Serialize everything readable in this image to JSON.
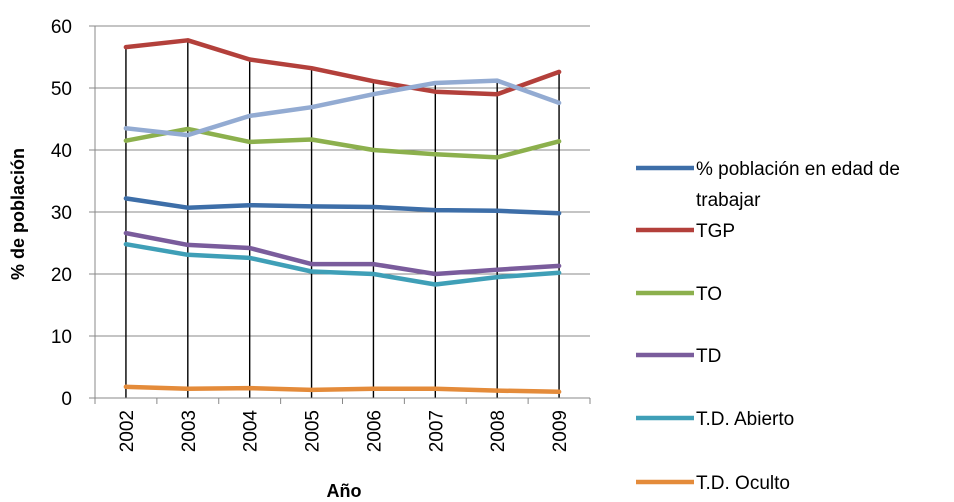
{
  "chart_data": {
    "type": "line",
    "title": "",
    "xlabel": "Año",
    "ylabel": "% de población",
    "ylim": [
      0,
      60
    ],
    "yticks": [
      0,
      10,
      20,
      30,
      40,
      50,
      60
    ],
    "categories": [
      "2002",
      "2003",
      "2004",
      "2005",
      "2006",
      "2007",
      "2008",
      "2009"
    ],
    "grid": "horizontal major gridlines; vertical drop lines at each year",
    "legend_position": "right",
    "series": [
      {
        "name": "% población en edad de trabajar",
        "color": "#3D6EA8",
        "values": [
          32.2,
          30.7,
          31.1,
          30.9,
          30.8,
          30.3,
          30.2,
          29.8
        ]
      },
      {
        "name": "TGP",
        "color": "#B3403B",
        "values": [
          56.6,
          57.7,
          54.6,
          53.2,
          51.1,
          49.4,
          49.0,
          52.6
        ]
      },
      {
        "name": "TO",
        "color": "#8CB04D",
        "values": [
          41.5,
          43.4,
          41.3,
          41.7,
          40.0,
          39.3,
          38.8,
          41.4
        ]
      },
      {
        "name": "TD",
        "color": "#7A5C9C",
        "values": [
          26.6,
          24.7,
          24.2,
          21.6,
          21.6,
          20.0,
          20.7,
          21.3
        ]
      },
      {
        "name": "T.D. Abierto",
        "color": "#3F9FB7",
        "values": [
          24.8,
          23.1,
          22.6,
          20.4,
          20.0,
          18.3,
          19.5,
          20.2
        ]
      },
      {
        "name": "T.D. Oculto",
        "color": "#E48B3A",
        "values": [
          1.8,
          1.5,
          1.6,
          1.3,
          1.5,
          1.5,
          1.2,
          1.0
        ]
      },
      {
        "name": "",
        "color": "#93ABD2",
        "values": [
          43.5,
          42.4,
          45.5,
          46.9,
          49.0,
          50.8,
          51.2,
          47.6
        ]
      }
    ],
    "legend_items": [
      {
        "lines": [
          "% población en edad de",
          "trabajar"
        ],
        "color": "#3D6EA8"
      },
      {
        "lines": [
          "TGP"
        ],
        "color": "#B3403B"
      },
      {
        "lines": [
          "TO"
        ],
        "color": "#8CB04D"
      },
      {
        "lines": [
          "TD"
        ],
        "color": "#7A5C9C"
      },
      {
        "lines": [
          "T.D. Abierto"
        ],
        "color": "#3F9FB7"
      },
      {
        "lines": [
          "T.D. Oculto"
        ],
        "color": "#E48B3A"
      }
    ]
  }
}
